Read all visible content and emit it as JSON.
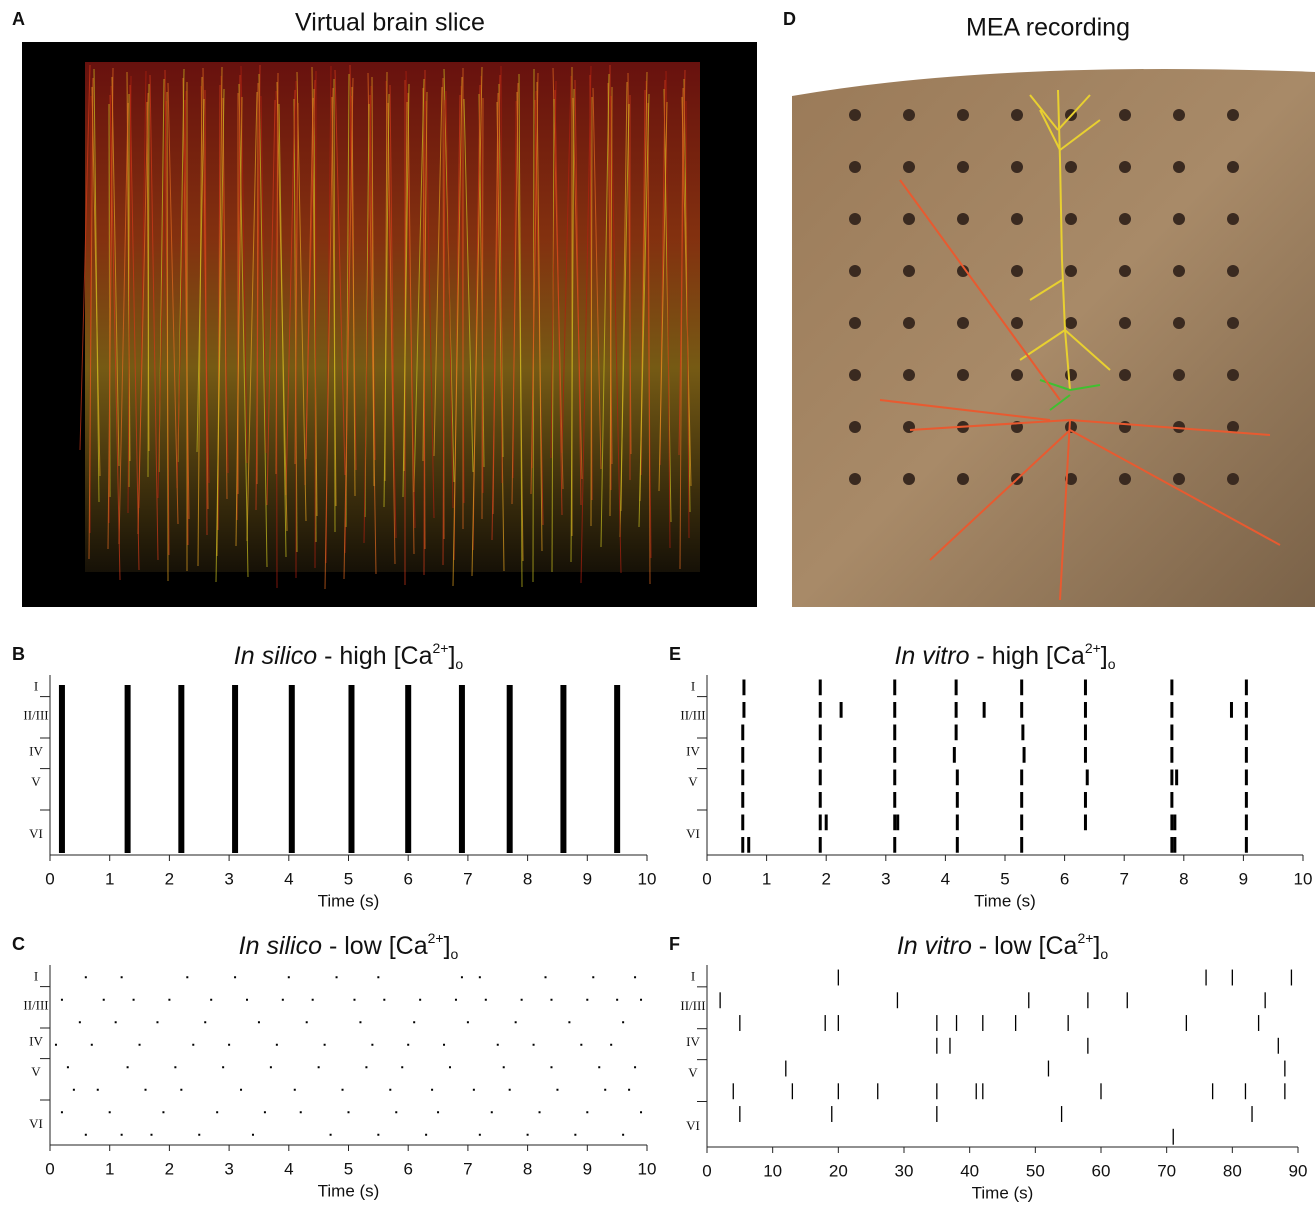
{
  "images": [
    {
      "letter": "A",
      "title": "Virtual brain slice"
    },
    {
      "letter": "D",
      "title": "MEA recording"
    }
  ],
  "chart_data": [
    {
      "type": "burst",
      "letter": "B",
      "title": [
        "In silico",
        " - high [Ca",
        "2+",
        "]",
        "o"
      ],
      "layers": [
        "I",
        "II/III",
        "IV",
        "V",
        "VI"
      ],
      "xlabel": "Time (s)",
      "xlim": [
        0,
        10
      ],
      "xticks": [
        0,
        1,
        2,
        3,
        4,
        5,
        6,
        7,
        8,
        9,
        10
      ],
      "values": [
        0.2,
        1.3,
        2.2,
        3.1,
        4.05,
        5.05,
        6.0,
        6.9,
        7.7,
        8.6,
        9.5
      ]
    },
    {
      "type": "raster",
      "letter": "C",
      "title": [
        "In silico",
        " - low [Ca",
        "2+",
        "]",
        "o"
      ],
      "layers": [
        "I",
        "II/III",
        "IV",
        "V",
        "VI"
      ],
      "xlabel": "Time (s)",
      "xlim": [
        0,
        10
      ],
      "xticks": [
        0,
        1,
        2,
        3,
        4,
        5,
        6,
        7,
        8,
        9,
        10
      ],
      "series": [
        {
          "values": [
            0.6,
            1.2,
            2.3,
            3.1,
            4.0,
            4.8,
            5.5,
            6.9,
            7.2,
            8.3,
            9.1,
            9.8
          ]
        },
        {
          "values": [
            0.2,
            0.9,
            1.4,
            2.0,
            2.7,
            3.3,
            3.9,
            4.4,
            5.1,
            5.6,
            6.2,
            6.8,
            7.3,
            7.9,
            8.4,
            9.0,
            9.5,
            9.9
          ]
        },
        {
          "values": [
            0.5,
            1.1,
            1.8,
            2.6,
            3.5,
            4.3,
            5.2,
            6.1,
            7.0,
            7.8,
            8.7,
            9.6
          ]
        },
        {
          "values": [
            0.1,
            0.7,
            1.5,
            2.4,
            3.0,
            3.8,
            4.6,
            5.4,
            6.0,
            6.6,
            7.5,
            8.1,
            8.9,
            9.4
          ]
        },
        {
          "values": [
            0.3,
            1.3,
            2.1,
            2.9,
            3.7,
            4.5,
            5.3,
            5.9,
            6.7,
            7.6,
            8.4,
            9.2,
            9.8
          ]
        },
        {
          "values": [
            0.4,
            0.8,
            1.6,
            2.2,
            3.2,
            4.1,
            4.9,
            5.7,
            6.4,
            7.1,
            7.7,
            8.5,
            9.3,
            9.7
          ]
        },
        {
          "values": [
            0.2,
            1.0,
            1.9,
            2.8,
            3.6,
            4.2,
            5.0,
            5.8,
            6.5,
            7.4,
            8.2,
            9.0,
            9.9
          ]
        },
        {
          "values": [
            0.6,
            1.2,
            1.7,
            2.5,
            3.4,
            4.7,
            5.5,
            6.3,
            7.2,
            8.0,
            8.8,
            9.6
          ]
        }
      ]
    },
    {
      "type": "raster",
      "letter": "E",
      "title": [
        "In vitro",
        " - high [Ca",
        "2+",
        "]",
        "o"
      ],
      "layers": [
        "I",
        "II/III",
        "IV",
        "V",
        "VI"
      ],
      "xlabel": "Time (s)",
      "xlim": [
        0,
        10
      ],
      "xticks": [
        0,
        1,
        2,
        3,
        4,
        5,
        6,
        7,
        8,
        9,
        10
      ],
      "series": [
        {
          "values": [
            0.62,
            1.9,
            3.15,
            4.18,
            5.28,
            6.35,
            7.8,
            9.05
          ]
        },
        {
          "values": [
            0.62,
            1.9,
            2.25,
            3.15,
            4.18,
            4.65,
            5.28,
            6.35,
            7.8,
            8.8,
            9.05
          ]
        },
        {
          "values": [
            0.6,
            1.9,
            3.15,
            4.18,
            5.3,
            6.35,
            7.8,
            9.05
          ]
        },
        {
          "values": [
            0.6,
            1.9,
            3.15,
            4.15,
            5.32,
            6.35,
            7.8,
            9.05
          ]
        },
        {
          "values": [
            0.6,
            1.9,
            3.15,
            4.2,
            5.28,
            6.38,
            7.8,
            7.88,
            9.05
          ]
        },
        {
          "values": [
            0.6,
            1.9,
            3.15,
            4.2,
            5.28,
            6.35,
            7.8,
            9.05
          ]
        },
        {
          "values": [
            0.6,
            1.9,
            2.0,
            3.15,
            3.2,
            4.2,
            5.28,
            6.35,
            7.8,
            7.85,
            9.05
          ]
        },
        {
          "values": [
            0.6,
            0.7,
            1.9,
            3.15,
            4.2,
            5.28,
            7.8,
            7.85,
            9.05
          ]
        }
      ]
    },
    {
      "type": "raster",
      "letter": "F",
      "title": [
        "In vitro",
        " - low [Ca",
        "2+",
        "]",
        "o"
      ],
      "layers": [
        "I",
        "II/III",
        "IV",
        "V",
        "VI"
      ],
      "xlabel": "Time (s)",
      "xlim": [
        0,
        90
      ],
      "xticks": [
        0,
        10,
        20,
        30,
        40,
        50,
        60,
        70,
        80,
        90
      ],
      "series": [
        {
          "values": [
            20,
            76,
            80,
            89
          ]
        },
        {
          "values": [
            2,
            29,
            49,
            58,
            64,
            85
          ]
        },
        {
          "values": [
            5,
            18,
            20,
            35,
            38,
            42,
            47,
            55,
            73,
            84
          ]
        },
        {
          "values": [
            35,
            37,
            58,
            87
          ]
        },
        {
          "values": [
            12,
            52,
            88
          ]
        },
        {
          "values": [
            4,
            13,
            20,
            26,
            35,
            41,
            42,
            60,
            77,
            82,
            88
          ]
        },
        {
          "values": [
            5,
            19,
            35,
            54,
            83
          ]
        },
        {
          "values": [
            71
          ]
        }
      ]
    }
  ]
}
